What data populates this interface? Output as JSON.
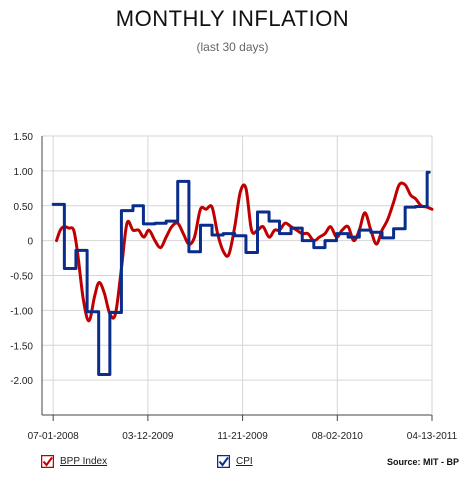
{
  "header": {
    "title": "MONTHLY INFLATION",
    "subtitle": "(last 30 days)"
  },
  "legend": {
    "items": [
      {
        "label": "BPP Index",
        "color": "#c00000",
        "checked": true
      },
      {
        "label": "CPI",
        "color": "#0a2d8c",
        "checked": true
      }
    ],
    "source": "Source: MIT - BP"
  },
  "chart_data": {
    "type": "line",
    "ylim": [
      -2.5,
      1.5
    ],
    "yticks": [
      "1.50",
      "1.00",
      "0.50",
      "0",
      "-0.50",
      "-1.00",
      "-1.50",
      "-2.00"
    ],
    "yticks_values": [
      1.5,
      1.0,
      0.5,
      0,
      -0.5,
      -1.0,
      -1.5,
      -2.0
    ],
    "xticks": [
      "07-01-2008",
      "03-12-2009",
      "11-21-2009",
      "08-02-2010",
      "04-13-2011"
    ],
    "xticks_values": [
      "2008-07-01",
      "2009-03-12",
      "2009-11-21",
      "2010-08-02",
      "2011-04-13"
    ],
    "xlim": [
      "2008-06-01",
      "2011-04-13"
    ],
    "grid": true,
    "series": [
      {
        "name": "BPP Index",
        "color": "#c00000",
        "style": "smooth",
        "x": [
          "2008-07-10",
          "2008-07-20",
          "2008-07-30",
          "2008-08-12",
          "2008-08-25",
          "2008-09-05",
          "2008-09-20",
          "2008-10-05",
          "2008-10-20",
          "2008-11-01",
          "2008-11-15",
          "2008-11-30",
          "2008-12-15",
          "2008-12-31",
          "2009-01-15",
          "2009-01-31",
          "2009-02-15",
          "2009-03-01",
          "2009-03-15",
          "2009-03-31",
          "2009-04-15",
          "2009-04-30",
          "2009-05-15",
          "2009-05-31",
          "2009-06-15",
          "2009-06-30",
          "2009-07-15",
          "2009-07-31",
          "2009-08-15",
          "2009-08-31",
          "2009-09-15",
          "2009-09-30",
          "2009-10-15",
          "2009-10-31",
          "2009-11-15",
          "2009-11-30",
          "2009-12-15",
          "2009-12-31",
          "2010-01-15",
          "2010-01-31",
          "2010-02-15",
          "2010-02-28",
          "2010-03-15",
          "2010-03-31",
          "2010-04-15",
          "2010-04-30",
          "2010-05-15",
          "2010-05-31",
          "2010-06-15",
          "2010-06-30",
          "2010-07-15",
          "2010-07-31",
          "2010-08-15",
          "2010-08-31",
          "2010-09-15",
          "2010-09-30",
          "2010-10-15",
          "2010-10-31",
          "2010-11-15",
          "2010-11-30",
          "2010-12-15",
          "2010-12-31",
          "2011-01-15",
          "2011-01-31",
          "2011-02-15",
          "2011-02-28",
          "2011-03-15",
          "2011-03-31",
          "2011-04-13"
        ],
        "y": [
          0.0,
          0.15,
          0.2,
          0.18,
          0.15,
          -0.2,
          -0.85,
          -1.15,
          -0.8,
          -0.6,
          -0.75,
          -1.05,
          -1.05,
          -0.4,
          0.25,
          0.15,
          0.15,
          0.05,
          0.15,
          0.0,
          -0.1,
          0.05,
          0.2,
          0.25,
          0.1,
          -0.05,
          0.05,
          0.45,
          0.45,
          0.48,
          0.1,
          -0.15,
          -0.2,
          0.2,
          0.7,
          0.75,
          0.15,
          0.15,
          0.2,
          0.05,
          0.15,
          0.15,
          0.25,
          0.2,
          0.15,
          0.1,
          0.1,
          0.0,
          0.05,
          0.1,
          0.2,
          0.05,
          0.15,
          0.2,
          0.0,
          0.15,
          0.4,
          0.15,
          -0.05,
          0.15,
          0.3,
          0.55,
          0.8,
          0.8,
          0.65,
          0.6,
          0.5,
          0.48,
          0.45
        ]
      },
      {
        "name": "CPI",
        "color": "#0a2d8c",
        "style": "step",
        "x": [
          "2008-07-01",
          "2008-07-31",
          "2008-08-31",
          "2008-09-30",
          "2008-10-31",
          "2008-11-30",
          "2008-12-31",
          "2009-01-31",
          "2009-02-28",
          "2009-03-31",
          "2009-04-30",
          "2009-05-31",
          "2009-06-30",
          "2009-07-31",
          "2009-08-31",
          "2009-09-30",
          "2009-10-31",
          "2009-11-30",
          "2009-12-31",
          "2010-01-31",
          "2010-02-28",
          "2010-03-31",
          "2010-04-30",
          "2010-05-31",
          "2010-06-30",
          "2010-07-31",
          "2010-08-31",
          "2010-09-30",
          "2010-10-31",
          "2010-11-30",
          "2010-12-31",
          "2011-01-31",
          "2011-02-28",
          "2011-03-31"
        ],
        "y": [
          0.52,
          -0.4,
          -0.14,
          -1.02,
          -1.92,
          -1.03,
          0.43,
          0.5,
          0.24,
          0.25,
          0.28,
          0.85,
          -0.16,
          0.22,
          0.08,
          0.1,
          0.07,
          -0.17,
          0.41,
          0.28,
          0.1,
          0.18,
          0.0,
          -0.1,
          0.0,
          0.1,
          0.05,
          0.15,
          0.12,
          0.04,
          0.17,
          0.48,
          0.49,
          0.98
        ]
      }
    ]
  }
}
